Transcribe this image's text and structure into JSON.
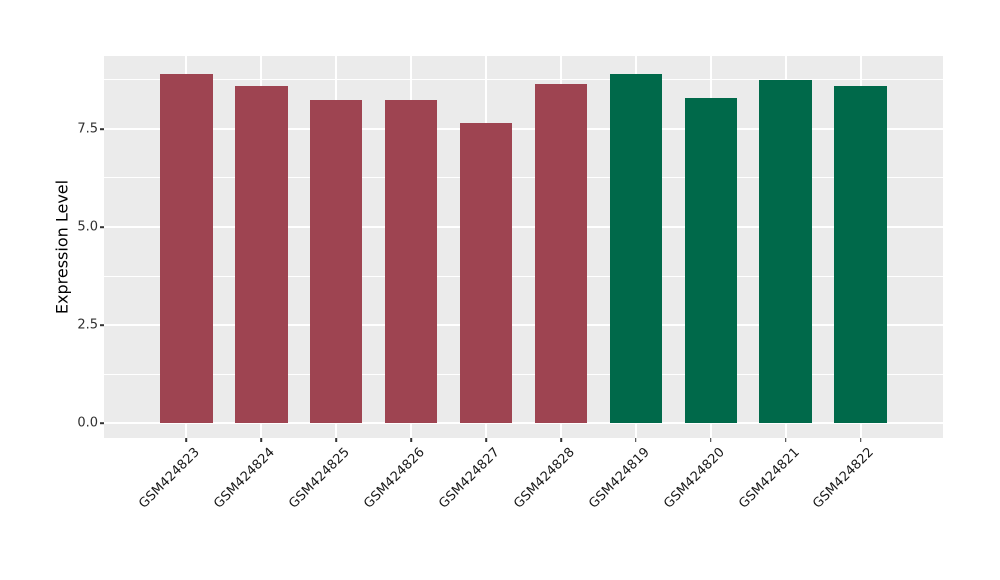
{
  "figure": {
    "background_color": "#FFFFFF",
    "panel_background_color": "#EBEBEB",
    "grid_color": "#FFFFFF",
    "tick_color": "#333333"
  },
  "chart_data": {
    "type": "bar",
    "title": "",
    "xlabel": "",
    "ylabel": "Expression Level",
    "categories": [
      "GSM424823",
      "GSM424824",
      "GSM424825",
      "GSM424826",
      "GSM424827",
      "GSM424828",
      "GSM424819",
      "GSM424820",
      "GSM424821",
      "GSM424822"
    ],
    "values": [
      8.9,
      8.6,
      8.25,
      8.25,
      7.65,
      8.65,
      8.9,
      8.3,
      8.75,
      8.6
    ],
    "bar_colors": [
      "#9E4451",
      "#9E4451",
      "#9E4451",
      "#9E4451",
      "#9E4451",
      "#9E4451",
      "#00694A",
      "#00694A",
      "#00694A",
      "#00694A"
    ],
    "group_colors": {
      "maroon_group": "#9E4451",
      "green_group": "#00694A"
    },
    "ylim": [
      -0.38,
      9.36
    ],
    "yticks": [
      0.0,
      2.5,
      5.0,
      7.5
    ],
    "ytick_labels": [
      "0.0",
      "2.5",
      "5.0",
      "7.5"
    ],
    "yticks_minor": [
      1.25,
      3.75,
      6.25,
      8.75
    ],
    "grid": true,
    "legend": "none",
    "x_label_rotation_deg": 45,
    "bar_width_fraction": 0.7
  }
}
